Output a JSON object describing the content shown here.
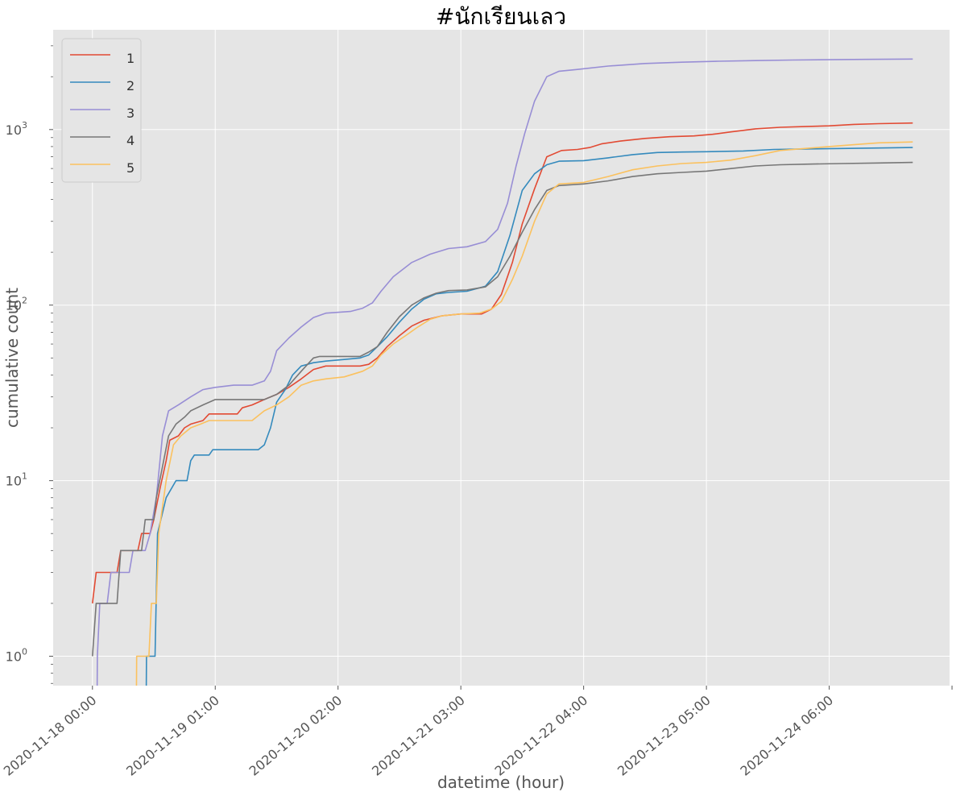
{
  "chart_data": {
    "type": "line",
    "title": "#นักเรียนเลว",
    "xlabel": "datetime (hour)",
    "ylabel": "cumulative count",
    "yscale": "log",
    "ylim": [
      0.68,
      3700
    ],
    "xlim": [
      -0.32,
      6.98
    ],
    "grid": true,
    "legend_position": "top-left",
    "x_ticks": [
      {
        "value": 0,
        "label": "2020-11-18 00:00"
      },
      {
        "value": 1,
        "label": "2020-11-19 01:00"
      },
      {
        "value": 2,
        "label": "2020-11-20 02:00"
      },
      {
        "value": 3,
        "label": "2020-11-21 03:00"
      },
      {
        "value": 4,
        "label": "2020-11-22 04:00"
      },
      {
        "value": 5,
        "label": "2020-11-23 05:00"
      },
      {
        "value": 6,
        "label": "2020-11-24 06:00"
      }
    ],
    "y_ticks": [
      {
        "value": 1,
        "base": "10",
        "exp": "0"
      },
      {
        "value": 10,
        "base": "10",
        "exp": "1"
      },
      {
        "value": 100,
        "base": "10",
        "exp": "2"
      },
      {
        "value": 1000,
        "base": "10",
        "exp": "3"
      }
    ],
    "x_unit_note": "x values are days since 2020-11-18 00:00",
    "series": [
      {
        "name": "1",
        "color": "#E24A33",
        "points": [
          [
            0,
            2
          ],
          [
            0.03,
            3
          ],
          [
            0.2,
            3
          ],
          [
            0.23,
            4
          ],
          [
            0.37,
            4
          ],
          [
            0.4,
            5
          ],
          [
            0.47,
            5
          ],
          [
            0.5,
            6
          ],
          [
            0.55,
            9
          ],
          [
            0.6,
            13
          ],
          [
            0.63,
            17
          ],
          [
            0.7,
            18
          ],
          [
            0.75,
            20
          ],
          [
            0.8,
            21
          ],
          [
            0.9,
            22
          ],
          [
            0.95,
            24
          ],
          [
            1.18,
            24
          ],
          [
            1.22,
            26
          ],
          [
            1.3,
            27
          ],
          [
            1.4,
            29
          ],
          [
            1.5,
            31
          ],
          [
            1.6,
            34
          ],
          [
            1.7,
            38
          ],
          [
            1.8,
            43
          ],
          [
            1.9,
            45
          ],
          [
            2.18,
            45
          ],
          [
            2.25,
            46
          ],
          [
            2.32,
            50
          ],
          [
            2.4,
            58
          ],
          [
            2.5,
            67
          ],
          [
            2.6,
            76
          ],
          [
            2.7,
            82
          ],
          [
            2.85,
            87
          ],
          [
            3.0,
            89
          ],
          [
            3.17,
            89
          ],
          [
            3.25,
            95
          ],
          [
            3.33,
            115
          ],
          [
            3.42,
            175
          ],
          [
            3.5,
            290
          ],
          [
            3.6,
            460
          ],
          [
            3.7,
            700
          ],
          [
            3.82,
            760
          ],
          [
            3.95,
            770
          ],
          [
            4.05,
            790
          ],
          [
            4.15,
            830
          ],
          [
            4.3,
            860
          ],
          [
            4.5,
            890
          ],
          [
            4.7,
            910
          ],
          [
            4.9,
            920
          ],
          [
            5.05,
            940
          ],
          [
            5.2,
            970
          ],
          [
            5.4,
            1010
          ],
          [
            5.6,
            1030
          ],
          [
            5.8,
            1040
          ],
          [
            6.0,
            1050
          ],
          [
            6.2,
            1070
          ],
          [
            6.4,
            1080
          ],
          [
            6.68,
            1090
          ]
        ]
      },
      {
        "name": "2",
        "color": "#348ABD",
        "points": [
          [
            0.43,
            0.1
          ],
          [
            0.44,
            1
          ],
          [
            0.51,
            1
          ],
          [
            0.53,
            5
          ],
          [
            0.6,
            8
          ],
          [
            0.68,
            10
          ],
          [
            0.77,
            10
          ],
          [
            0.8,
            13
          ],
          [
            0.83,
            14
          ],
          [
            0.95,
            14
          ],
          [
            0.98,
            15
          ],
          [
            1.35,
            15
          ],
          [
            1.4,
            16
          ],
          [
            1.45,
            20
          ],
          [
            1.5,
            28
          ],
          [
            1.57,
            33
          ],
          [
            1.63,
            40
          ],
          [
            1.7,
            45
          ],
          [
            1.8,
            47
          ],
          [
            1.9,
            48
          ],
          [
            2.05,
            49
          ],
          [
            2.18,
            50
          ],
          [
            2.25,
            52
          ],
          [
            2.32,
            58
          ],
          [
            2.4,
            66
          ],
          [
            2.5,
            80
          ],
          [
            2.6,
            95
          ],
          [
            2.7,
            108
          ],
          [
            2.8,
            116
          ],
          [
            2.9,
            118
          ],
          [
            3.05,
            120
          ],
          [
            3.2,
            128
          ],
          [
            3.3,
            155
          ],
          [
            3.4,
            250
          ],
          [
            3.5,
            450
          ],
          [
            3.6,
            560
          ],
          [
            3.7,
            630
          ],
          [
            3.8,
            660
          ],
          [
            4.0,
            665
          ],
          [
            4.2,
            690
          ],
          [
            4.4,
            720
          ],
          [
            4.6,
            740
          ],
          [
            4.8,
            745
          ],
          [
            5.0,
            748
          ],
          [
            5.3,
            755
          ],
          [
            5.55,
            770
          ],
          [
            5.8,
            775
          ],
          [
            6.1,
            780
          ],
          [
            6.4,
            785
          ],
          [
            6.68,
            790
          ]
        ]
      },
      {
        "name": "3",
        "color": "#988ED5",
        "points": [
          [
            0.03,
            0.1
          ],
          [
            0.04,
            1
          ],
          [
            0.06,
            2
          ],
          [
            0.12,
            2
          ],
          [
            0.15,
            3
          ],
          [
            0.3,
            3
          ],
          [
            0.33,
            4
          ],
          [
            0.43,
            4
          ],
          [
            0.47,
            5
          ],
          [
            0.52,
            8
          ],
          [
            0.57,
            18
          ],
          [
            0.62,
            25
          ],
          [
            0.7,
            27
          ],
          [
            0.8,
            30
          ],
          [
            0.9,
            33
          ],
          [
            1.0,
            34
          ],
          [
            1.15,
            35
          ],
          [
            1.3,
            35
          ],
          [
            1.4,
            37
          ],
          [
            1.45,
            42
          ],
          [
            1.5,
            55
          ],
          [
            1.6,
            65
          ],
          [
            1.7,
            75
          ],
          [
            1.8,
            85
          ],
          [
            1.9,
            90
          ],
          [
            2.1,
            92
          ],
          [
            2.2,
            96
          ],
          [
            2.28,
            103
          ],
          [
            2.35,
            120
          ],
          [
            2.45,
            145
          ],
          [
            2.6,
            175
          ],
          [
            2.75,
            195
          ],
          [
            2.9,
            210
          ],
          [
            3.05,
            215
          ],
          [
            3.2,
            230
          ],
          [
            3.3,
            270
          ],
          [
            3.38,
            380
          ],
          [
            3.45,
            620
          ],
          [
            3.52,
            950
          ],
          [
            3.6,
            1450
          ],
          [
            3.7,
            2000
          ],
          [
            3.8,
            2150
          ],
          [
            3.95,
            2200
          ],
          [
            4.2,
            2300
          ],
          [
            4.5,
            2380
          ],
          [
            4.8,
            2420
          ],
          [
            5.1,
            2450
          ],
          [
            5.4,
            2470
          ],
          [
            5.7,
            2490
          ],
          [
            6.0,
            2500
          ],
          [
            6.3,
            2510
          ],
          [
            6.68,
            2520
          ]
        ]
      },
      {
        "name": "4",
        "color": "#777777",
        "points": [
          [
            0,
            1
          ],
          [
            0.03,
            2
          ],
          [
            0.2,
            2
          ],
          [
            0.23,
            4
          ],
          [
            0.4,
            4
          ],
          [
            0.43,
            6
          ],
          [
            0.5,
            6
          ],
          [
            0.52,
            8
          ],
          [
            0.57,
            12
          ],
          [
            0.62,
            18
          ],
          [
            0.68,
            21
          ],
          [
            0.75,
            23
          ],
          [
            0.8,
            25
          ],
          [
            0.9,
            27
          ],
          [
            1.0,
            29
          ],
          [
            1.1,
            29
          ],
          [
            1.4,
            29
          ],
          [
            1.5,
            31
          ],
          [
            1.6,
            35
          ],
          [
            1.7,
            42
          ],
          [
            1.8,
            50
          ],
          [
            1.85,
            51
          ],
          [
            2.18,
            51
          ],
          [
            2.25,
            54
          ],
          [
            2.32,
            58
          ],
          [
            2.4,
            70
          ],
          [
            2.5,
            86
          ],
          [
            2.6,
            100
          ],
          [
            2.7,
            110
          ],
          [
            2.8,
            117
          ],
          [
            2.9,
            121
          ],
          [
            3.05,
            122
          ],
          [
            3.2,
            127
          ],
          [
            3.3,
            145
          ],
          [
            3.4,
            190
          ],
          [
            3.5,
            260
          ],
          [
            3.6,
            350
          ],
          [
            3.7,
            450
          ],
          [
            3.8,
            480
          ],
          [
            4.0,
            490
          ],
          [
            4.2,
            510
          ],
          [
            4.4,
            540
          ],
          [
            4.6,
            560
          ],
          [
            4.8,
            570
          ],
          [
            5.0,
            580
          ],
          [
            5.2,
            600
          ],
          [
            5.4,
            620
          ],
          [
            5.6,
            630
          ],
          [
            5.8,
            635
          ],
          [
            6.1,
            640
          ],
          [
            6.4,
            645
          ],
          [
            6.68,
            650
          ]
        ]
      },
      {
        "name": "5",
        "color": "#FBC15E",
        "points": [
          [
            0.35,
            0.1
          ],
          [
            0.36,
            1
          ],
          [
            0.46,
            1
          ],
          [
            0.48,
            2
          ],
          [
            0.52,
            2
          ],
          [
            0.54,
            5
          ],
          [
            0.6,
            10
          ],
          [
            0.66,
            16
          ],
          [
            0.72,
            18
          ],
          [
            0.8,
            20
          ],
          [
            0.88,
            21
          ],
          [
            0.95,
            22
          ],
          [
            1.05,
            22
          ],
          [
            1.3,
            22
          ],
          [
            1.4,
            25
          ],
          [
            1.5,
            27
          ],
          [
            1.6,
            30
          ],
          [
            1.7,
            35
          ],
          [
            1.8,
            37
          ],
          [
            1.9,
            38
          ],
          [
            2.05,
            39
          ],
          [
            2.2,
            42
          ],
          [
            2.28,
            45
          ],
          [
            2.35,
            52
          ],
          [
            2.45,
            60
          ],
          [
            2.55,
            67
          ],
          [
            2.65,
            75
          ],
          [
            2.75,
            83
          ],
          [
            2.85,
            87
          ],
          [
            3.0,
            89
          ],
          [
            3.15,
            90
          ],
          [
            3.25,
            95
          ],
          [
            3.33,
            105
          ],
          [
            3.42,
            140
          ],
          [
            3.5,
            190
          ],
          [
            3.6,
            300
          ],
          [
            3.7,
            430
          ],
          [
            3.8,
            490
          ],
          [
            4.0,
            500
          ],
          [
            4.2,
            540
          ],
          [
            4.4,
            590
          ],
          [
            4.6,
            620
          ],
          [
            4.8,
            640
          ],
          [
            5.0,
            650
          ],
          [
            5.2,
            670
          ],
          [
            5.4,
            710
          ],
          [
            5.6,
            760
          ],
          [
            5.8,
            780
          ],
          [
            6.0,
            800
          ],
          [
            6.2,
            820
          ],
          [
            6.4,
            840
          ],
          [
            6.68,
            850
          ]
        ]
      }
    ]
  }
}
